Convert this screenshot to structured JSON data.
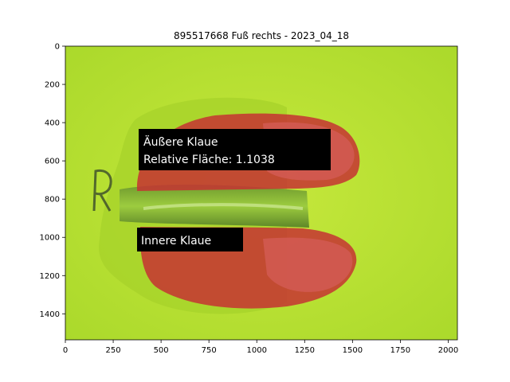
{
  "figure": {
    "title": "895517668 Fuß rechts - 2023_04_18"
  },
  "image": {
    "description_icon": "hoof-photo",
    "overlay_color": "#cc3333",
    "background_color": "#b9e02f",
    "x_range": [
      0,
      2048
    ],
    "y_range": [
      0,
      1536
    ]
  },
  "axes": {
    "x_ticks": [
      0,
      250,
      500,
      750,
      1000,
      1250,
      1500,
      1750,
      2000
    ],
    "y_ticks": [
      0,
      200,
      400,
      600,
      800,
      1000,
      1200,
      1400
    ]
  },
  "annotations": {
    "outer": {
      "line1": "Äußere Klaue",
      "line2": "Relative Fläche: 1.1038"
    },
    "inner": {
      "line1": "Innere Klaue"
    }
  }
}
